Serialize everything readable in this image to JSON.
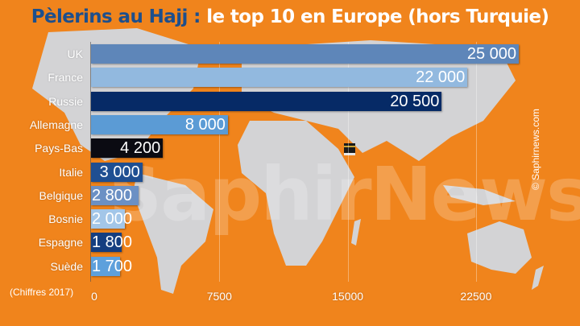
{
  "title": {
    "part1": "Pèlerins au Hajj :",
    "part2": " le top 10 en Europe (hors Turquie)"
  },
  "footnote": "(Chiffres 2017)",
  "copyright": "© Saphirnews.com",
  "watermark": "SaphirNews",
  "colors": {
    "background": "#f0841c",
    "title_accent": "#1d4f8c",
    "map_land": "#d3d3d5"
  },
  "axis": {
    "ticks": [
      "0",
      "7500",
      "15000",
      "22500"
    ]
  },
  "bars": [
    {
      "label": "UK",
      "value": 25000,
      "display": "25 000",
      "color": "#5e86b9"
    },
    {
      "label": "France",
      "value": 22000,
      "display": "22 000",
      "color": "#92b9df"
    },
    {
      "label": "Russie",
      "value": 20500,
      "display": "20 500",
      "color": "#062a66"
    },
    {
      "label": "Allemagne",
      "value": 8000,
      "display": "8 000",
      "color": "#5b9bd5"
    },
    {
      "label": "Pays-Bas",
      "value": 4200,
      "display": "4 200",
      "color": "#0b0b12"
    },
    {
      "label": "Italie",
      "value": 3000,
      "display": "3 000",
      "color": "#1f4f92"
    },
    {
      "label": "Belgique",
      "value": 2800,
      "display": "2 800",
      "color": "#6b90c4"
    },
    {
      "label": "Bosnie",
      "value": 2000,
      "display": "2 000",
      "color": "#a3c6e8"
    },
    {
      "label": "Espagne",
      "value": 1800,
      "display": "1 800",
      "color": "#153e80"
    },
    {
      "label": "Suède",
      "value": 1700,
      "display": "1 700",
      "color": "#5da0dc"
    }
  ],
  "chart_data": {
    "type": "bar",
    "orientation": "horizontal",
    "title": "Pèlerins au Hajj : le top 10 en Europe (hors Turquie)",
    "categories": [
      "UK",
      "France",
      "Russie",
      "Allemagne",
      "Pays-Bas",
      "Italie",
      "Belgique",
      "Bosnie",
      "Espagne",
      "Suède"
    ],
    "values": [
      25000,
      22000,
      20500,
      8000,
      4200,
      3000,
      2800,
      2000,
      1800,
      1700
    ],
    "data_labels": [
      "25 000",
      "22 000",
      "20 500",
      "8 000",
      "4 200",
      "3 000",
      "2 800",
      "2 000",
      "1 800",
      "1 700"
    ],
    "xlabel": "",
    "ylabel": "",
    "xticks": [
      0,
      7500,
      15000,
      22500
    ],
    "xlim": [
      0,
      26000
    ],
    "grid": true,
    "legend": null,
    "annotations": [
      "(Chiffres 2017)",
      "© Saphirnews.com"
    ]
  }
}
